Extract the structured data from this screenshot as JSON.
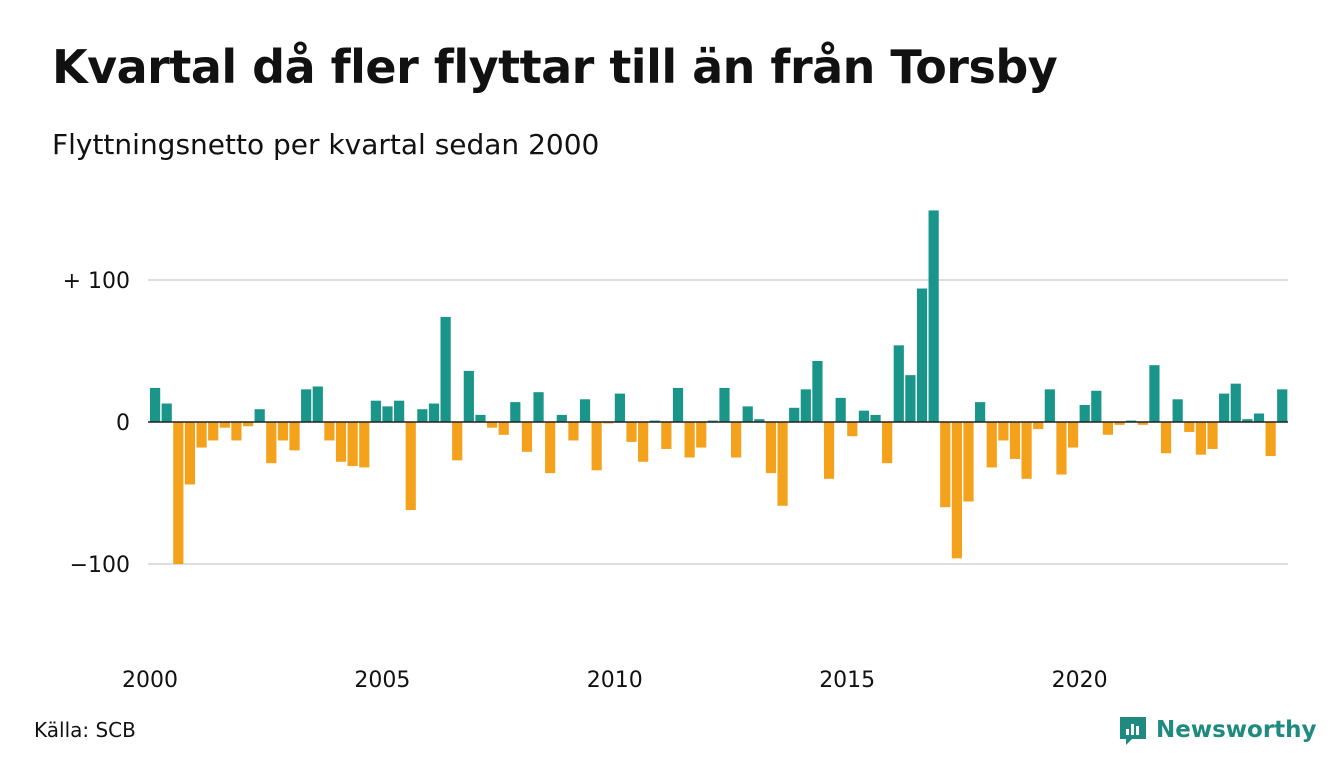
{
  "title": "Kvartal då fler flyttar till än från Torsby",
  "subtitle": "Flyttningsnetto per kvartal sedan 2000",
  "source": "Källa: SCB",
  "brand": {
    "name": "Newsworthy",
    "icon": "newsworthy-logo-icon"
  },
  "colors": {
    "positive": "#1a9589",
    "negative": "#f4a11c",
    "grid": "#dedede",
    "brand": "#1e8a80"
  },
  "chart_data": {
    "type": "bar",
    "x_start_year": 2000,
    "x_step": "quarter",
    "xticks": [
      2000,
      2005,
      2010,
      2015,
      2020
    ],
    "yticks": [
      {
        "value": 100,
        "label": "+ 100"
      },
      {
        "value": 0,
        "label": "0"
      },
      {
        "value": -100,
        "label": "−100"
      }
    ],
    "ylim": [
      -160,
      150
    ],
    "grid": true,
    "values": [
      24,
      13,
      -100,
      -44,
      -18,
      -13,
      -4,
      -13,
      -3,
      9,
      -29,
      -13,
      -20,
      23,
      25,
      -13,
      -28,
      -31,
      -32,
      15,
      11,
      15,
      -62,
      9,
      13,
      74,
      -27,
      36,
      5,
      -4,
      -9,
      14,
      -21,
      21,
      -36,
      5,
      -13,
      16,
      -34,
      -1,
      20,
      -14,
      -28,
      1,
      -19,
      24,
      -25,
      -18,
      1,
      24,
      -25,
      11,
      2,
      -36,
      -59,
      10,
      23,
      43,
      -40,
      17,
      -10,
      8,
      5,
      -29,
      54,
      33,
      94,
      149,
      -60,
      -96,
      -56,
      14,
      -32,
      -13,
      -26,
      -40,
      -5,
      23,
      -37,
      -18,
      12,
      22,
      -9,
      -2,
      1,
      -2,
      40,
      -22,
      16,
      -7,
      -23,
      -19,
      20,
      27,
      2,
      6,
      -24,
      23
    ]
  }
}
